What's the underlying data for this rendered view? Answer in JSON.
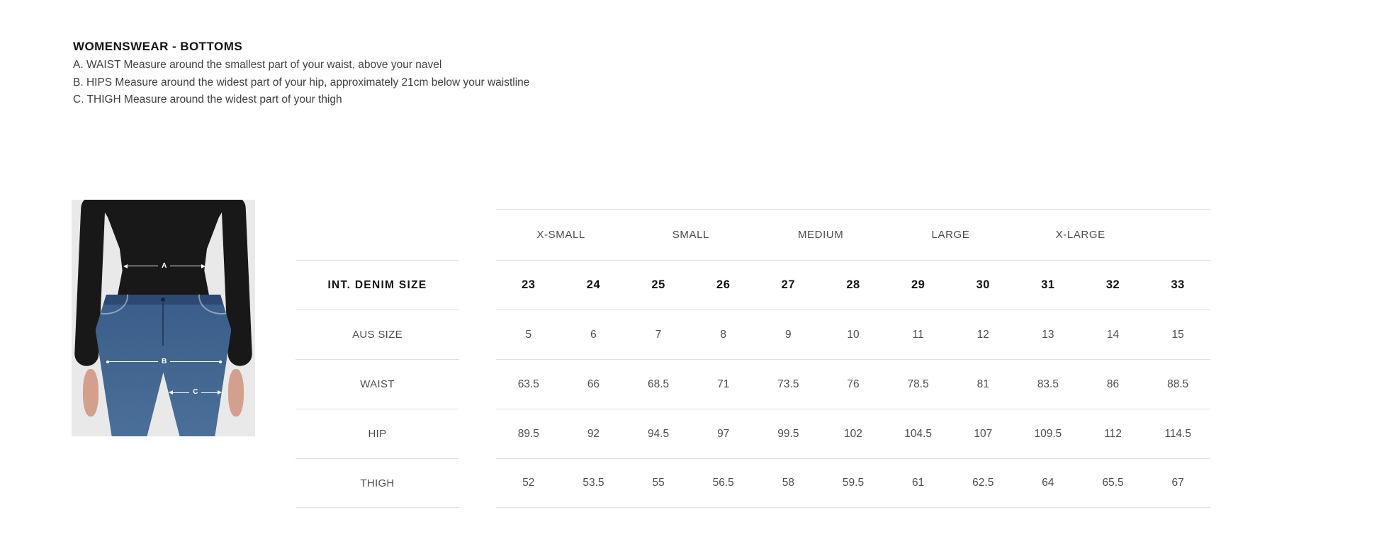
{
  "page": {
    "title": "WOMENSWEAR - BOTTOMS",
    "instructions": [
      "A. WAIST Measure around the smallest part of your waist, above your navel",
      "B. HIPS Measure around the widest part of your hip, approximately 21cm below your waistline",
      "C. THIGH Measure around the widest part of your thigh"
    ]
  },
  "figure": {
    "marker_a": "A",
    "marker_b": "B",
    "marker_c": "C"
  },
  "size_table": {
    "group_headers": [
      "X-SMALL",
      "SMALL",
      "MEDIUM",
      "LARGE",
      "X-LARGE"
    ],
    "rows": [
      {
        "label": "INT. DENIM SIZE",
        "bold": true,
        "values": [
          "23",
          "24",
          "25",
          "26",
          "27",
          "28",
          "29",
          "30",
          "31",
          "32",
          "33"
        ]
      },
      {
        "label": "AUS SIZE",
        "bold": false,
        "values": [
          "5",
          "6",
          "7",
          "8",
          "9",
          "10",
          "11",
          "12",
          "13",
          "14",
          "15"
        ]
      },
      {
        "label": "WAIST",
        "bold": false,
        "values": [
          "63.5",
          "66",
          "68.5",
          "71",
          "73.5",
          "76",
          "78.5",
          "81",
          "83.5",
          "86",
          "88.5"
        ]
      },
      {
        "label": "HIP",
        "bold": false,
        "values": [
          "89.5",
          "92",
          "94.5",
          "97",
          "99.5",
          "102",
          "104.5",
          "107",
          "109.5",
          "112",
          "114.5"
        ]
      },
      {
        "label": "THIGH",
        "bold": false,
        "values": [
          "52",
          "53.5",
          "55",
          "56.5",
          "58",
          "59.5",
          "61",
          "62.5",
          "64",
          "65.5",
          "67"
        ]
      }
    ]
  },
  "colors": {
    "background": "#ffffff",
    "rule_line": "#e0e0e0",
    "text_dark": "#131313",
    "text_gray": "#4c4c4c",
    "figure_background": "#e9e9e9",
    "sweater_black": "#181818",
    "jeans_blue": "#41648e",
    "skin": "#d2a08d",
    "marker_white": "#ffffff"
  }
}
